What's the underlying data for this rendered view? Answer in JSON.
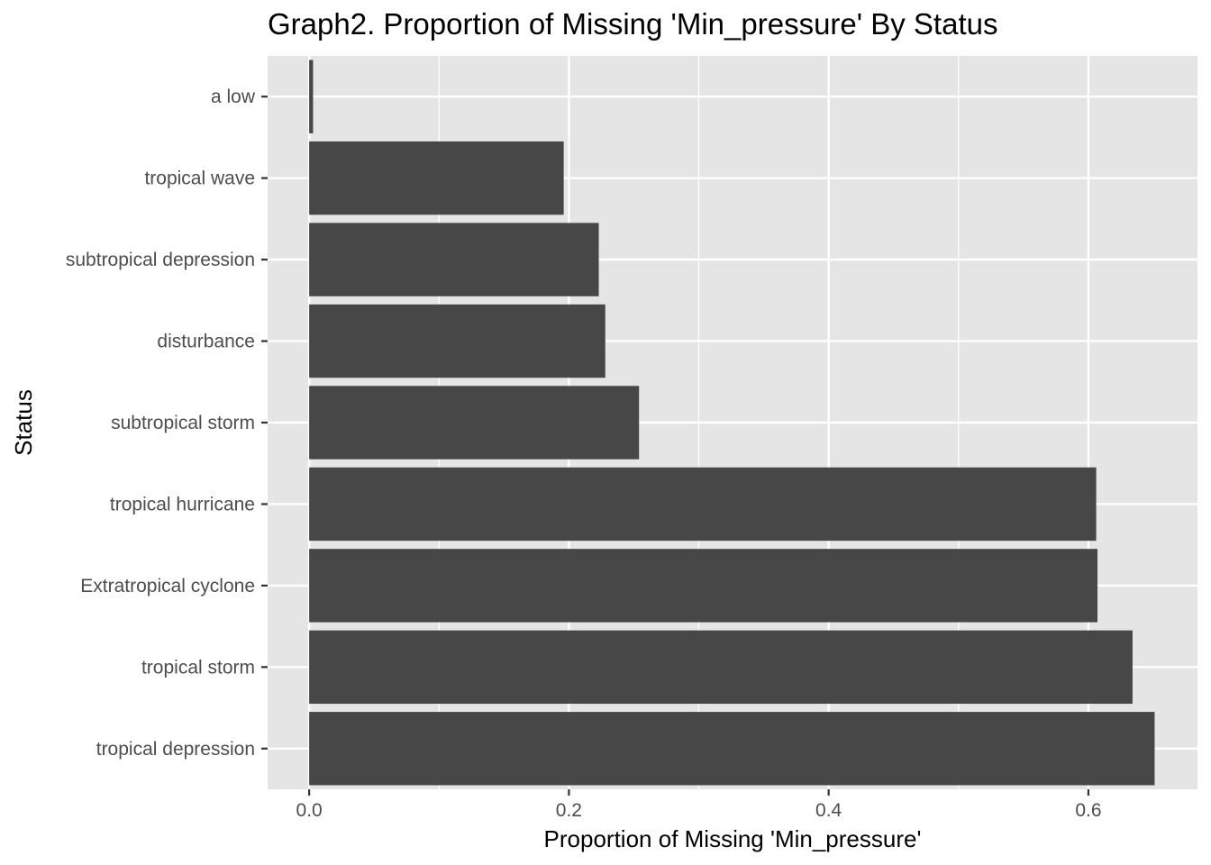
{
  "chart_data": {
    "type": "bar",
    "orientation": "horizontal",
    "title": "Graph2. Proportion of Missing 'Min_pressure' By Status",
    "xlabel": "Proportion of Missing 'Min_pressure'",
    "ylabel": "Status",
    "categories": [
      "a low",
      "tropical wave",
      "subtropical depression",
      "disturbance",
      "subtropical storm",
      "tropical hurricane",
      "Extratropical cyclone",
      "tropical storm",
      "tropical depression"
    ],
    "values": [
      0.003,
      0.196,
      0.223,
      0.228,
      0.254,
      0.606,
      0.607,
      0.634,
      0.651
    ],
    "x_ticks": [
      "0.0",
      "0.2",
      "0.4",
      "0.6"
    ],
    "x_tick_values": [
      0.0,
      0.2,
      0.4,
      0.6
    ],
    "xlim": [
      -0.032,
      0.684
    ],
    "grid": true,
    "colors": {
      "bar": "#474747",
      "panel_background": "#e5e5e5",
      "grid_line": "#ffffff"
    }
  }
}
